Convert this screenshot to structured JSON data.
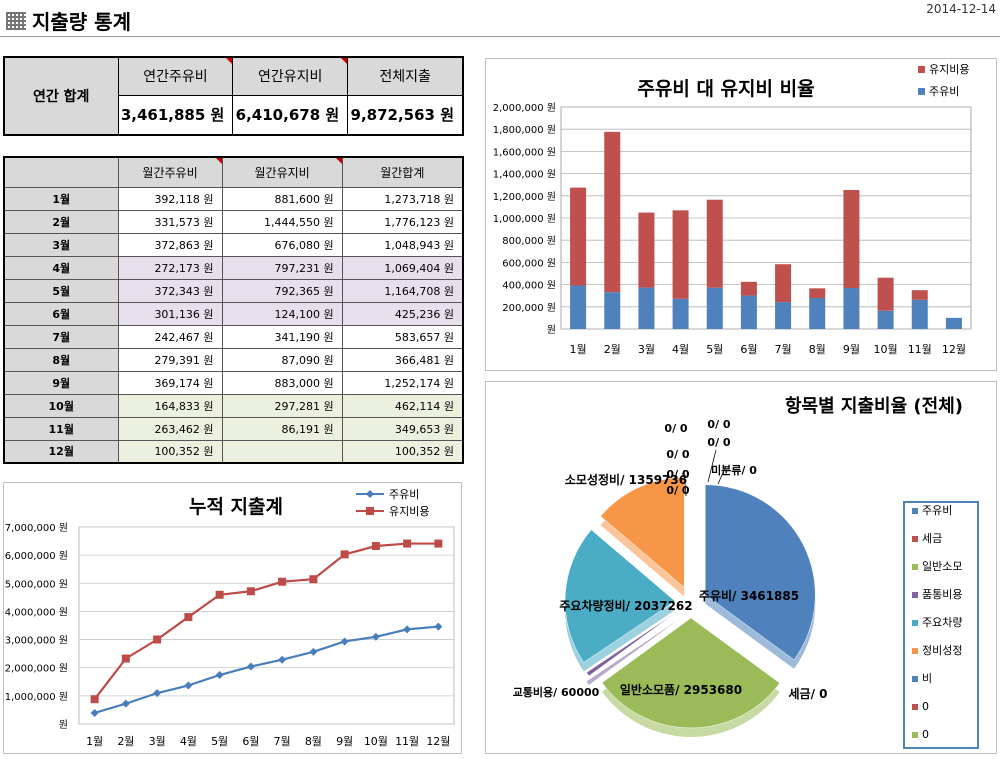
{
  "page": {
    "title": "지출량 통계",
    "date": "2014-12-14"
  },
  "summary": {
    "row_label": "연간 합계",
    "headers": [
      "연간주유비",
      "연간유지비",
      "전체지출"
    ],
    "values": [
      "3,461,885 원",
      "6,410,678 원",
      "9,872,563 원"
    ]
  },
  "monthly": {
    "headers": [
      "",
      "월간주유비",
      "월간유지비",
      "월간합계"
    ],
    "rows": [
      {
        "month": "1월",
        "fuel": "392,118 원",
        "maint": "881,600 원",
        "total": "1,273,718 원"
      },
      {
        "month": "2월",
        "fuel": "331,573 원",
        "maint": "1,444,550 원",
        "total": "1,776,123 원"
      },
      {
        "month": "3월",
        "fuel": "372,863 원",
        "maint": "676,080 원",
        "total": "1,048,943 원"
      },
      {
        "month": "4월",
        "fuel": "272,173 원",
        "maint": "797,231 원",
        "total": "1,069,404 원"
      },
      {
        "month": "5월",
        "fuel": "372,343 원",
        "maint": "792,365 원",
        "total": "1,164,708 원"
      },
      {
        "month": "6월",
        "fuel": "301,136 원",
        "maint": "124,100 원",
        "total": "425,236 원"
      },
      {
        "month": "7월",
        "fuel": "242,467 원",
        "maint": "341,190 원",
        "total": "583,657 원"
      },
      {
        "month": "8월",
        "fuel": "279,391 원",
        "maint": "87,090 원",
        "total": "366,481 원"
      },
      {
        "month": "9월",
        "fuel": "369,174 원",
        "maint": "883,000 원",
        "total": "1,252,174 원"
      },
      {
        "month": "10월",
        "fuel": "164,833 원",
        "maint": "297,281 원",
        "total": "462,114 원"
      },
      {
        "month": "11월",
        "fuel": "263,462 원",
        "maint": "86,191 원",
        "total": "349,653 원"
      },
      {
        "month": "12월",
        "fuel": "100,352 원",
        "maint": "",
        "total": "100,352 원"
      }
    ]
  },
  "chart_data": [
    {
      "type": "bar",
      "stacked": true,
      "title": "주유비 대 유지비 비율",
      "categories": [
        "1월",
        "2월",
        "3월",
        "4월",
        "5월",
        "6월",
        "7월",
        "8월",
        "9월",
        "10월",
        "11월",
        "12월"
      ],
      "series": [
        {
          "name": "주유비",
          "color": "#4f81bd",
          "values": [
            392118,
            331573,
            372863,
            272173,
            372343,
            301136,
            242467,
            279391,
            369174,
            164833,
            263462,
            100352
          ]
        },
        {
          "name": "유지비용",
          "color": "#c0504d",
          "values": [
            881600,
            1444550,
            676080,
            797231,
            792365,
            124100,
            341190,
            87090,
            883000,
            297281,
            86191,
            0
          ]
        }
      ],
      "ylim": [
        0,
        2000000
      ],
      "yticks": [
        "원",
        "200,000 원",
        "400,000 원",
        "600,000 원",
        "800,000 원",
        "1,000,000 원",
        "1,200,000 원",
        "1,400,000 원",
        "1,600,000 원",
        "1,800,000 원",
        "2,000,000 원"
      ],
      "legend": "top-right",
      "grid": true
    },
    {
      "type": "line",
      "title": "누적 지출계",
      "categories": [
        "1월",
        "2월",
        "3월",
        "4월",
        "5월",
        "6월",
        "7월",
        "8월",
        "9월",
        "10월",
        "11월",
        "12월"
      ],
      "series": [
        {
          "name": "주유비",
          "color": "#4a7ebb",
          "values": [
            392118,
            723691,
            1096554,
            1368727,
            1741070,
            2042206,
            2284673,
            2564064,
            2933238,
            3098071,
            3361533,
            3461885
          ]
        },
        {
          "name": "유지비용",
          "color": "#be4b48",
          "values": [
            881600,
            2326150,
            3002230,
            3799461,
            4591826,
            4715926,
            5057116,
            5144206,
            6027206,
            6324487,
            6410678,
            6410678
          ]
        }
      ],
      "ylim": [
        0,
        7000000
      ],
      "yticks": [
        "원",
        "1,000,000 원",
        "2,000,000 원",
        "3,000,000 원",
        "4,000,000 원",
        "5,000,000 원",
        "6,000,000 원",
        "7,000,000 원"
      ],
      "legend": "top-right",
      "grid": true
    },
    {
      "type": "pie",
      "title": "항목별 지출비율 (전체)",
      "slices": [
        {
          "label": "주유비",
          "value": 3461885,
          "color": "#4f81bd"
        },
        {
          "label": "세금",
          "value": 0,
          "color": "#c0504d"
        },
        {
          "label": "일반소모품",
          "value": 2953680,
          "color": "#9bbb59"
        },
        {
          "label": "교통비용",
          "value": 60000,
          "color": "#8064a2"
        },
        {
          "label": "주요차량정비",
          "value": 2037262,
          "color": "#4bacc6"
        },
        {
          "label": "소모성정비",
          "value": 1359736,
          "color": "#f79646"
        },
        {
          "label": "미분류",
          "value": 0,
          "color": "#2c4d75"
        }
      ],
      "data_labels": {
        "fuel": "주유비/ 3461885",
        "tax": "세금/ 0",
        "consumables": "일반소모품/ 2953680",
        "transport": "교통비용/ 60000",
        "major_repair": "주요차량정비/ 2037262",
        "minor_repair": "소모성정비/ 1359736",
        "unclassified": "미분류/ 0",
        "zero_1": "0/ 0",
        "zero_2": "0/ 0",
        "zero_3": "0/ 0",
        "zero_4": "0/ 0",
        "zero_5": "0/ 0",
        "zero_6": "0/ 0"
      },
      "legend_entries": [
        {
          "label": "주유비",
          "color": "#4f81bd"
        },
        {
          "label": "세금",
          "color": "#c0504d"
        },
        {
          "label": "일반소모",
          "color": "#9bbb59"
        },
        {
          "label": "품통비용",
          "color": "#8064a2"
        },
        {
          "label": "주요차량",
          "color": "#4bacc6"
        },
        {
          "label": "정비성정",
          "color": "#f79646"
        },
        {
          "label": "비",
          "color": "#4f81bd"
        },
        {
          "label": "0",
          "color": "#c0504d"
        },
        {
          "label": "0",
          "color": "#9bbb59"
        }
      ],
      "legend": "right"
    }
  ]
}
